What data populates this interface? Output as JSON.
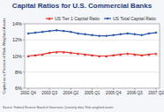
{
  "chart_data": {
    "type": "line",
    "title": "Capital Ratios for U.S. Commercial Banks",
    "y_label": "Capital as a Percent of Risk-Weighted Assets",
    "source": "Source: Federal Reserve Board of Governors; Quarterly data; Risk-weighted assets",
    "categories": [
      "2002 Q4",
      null,
      null,
      "2003 Q3",
      null,
      null,
      "2004 Q2",
      null,
      null,
      "2005 Q1",
      null,
      null,
      "2005 Q4",
      null,
      null,
      "2006 Q3",
      null,
      null,
      "2007 Q2"
    ],
    "series": [
      {
        "name": "US Tier 1 Capital Ratio",
        "color": "#e0312b",
        "marker": "triangle",
        "values": [
          10.0,
          10.1,
          10.2,
          10.4,
          10.5,
          10.5,
          10.4,
          10.3,
          10.2,
          10.1,
          10.0,
          10.0,
          10.1,
          10.2,
          10.3,
          10.2,
          10.1,
          10.2,
          10.3
        ]
      },
      {
        "name": "US Total Capital Ratio",
        "color": "#2a55a8",
        "marker": "diamond",
        "values": [
          12.8,
          12.9,
          13.0,
          13.1,
          13.2,
          13.1,
          13.0,
          12.8,
          12.7,
          12.6,
          12.5,
          12.5,
          12.6,
          12.7,
          12.8,
          12.7,
          12.6,
          12.8,
          12.9
        ]
      }
    ],
    "ylim": [
      6,
      14
    ],
    "yticks": [
      {
        "value": 6,
        "label": "6%"
      },
      {
        "value": 8,
        "label": "8%"
      },
      {
        "value": 10,
        "label": "10%"
      },
      {
        "value": 12,
        "label": "12%"
      },
      {
        "value": 14,
        "label": "14%"
      }
    ],
    "grid": true,
    "legend": "top"
  }
}
